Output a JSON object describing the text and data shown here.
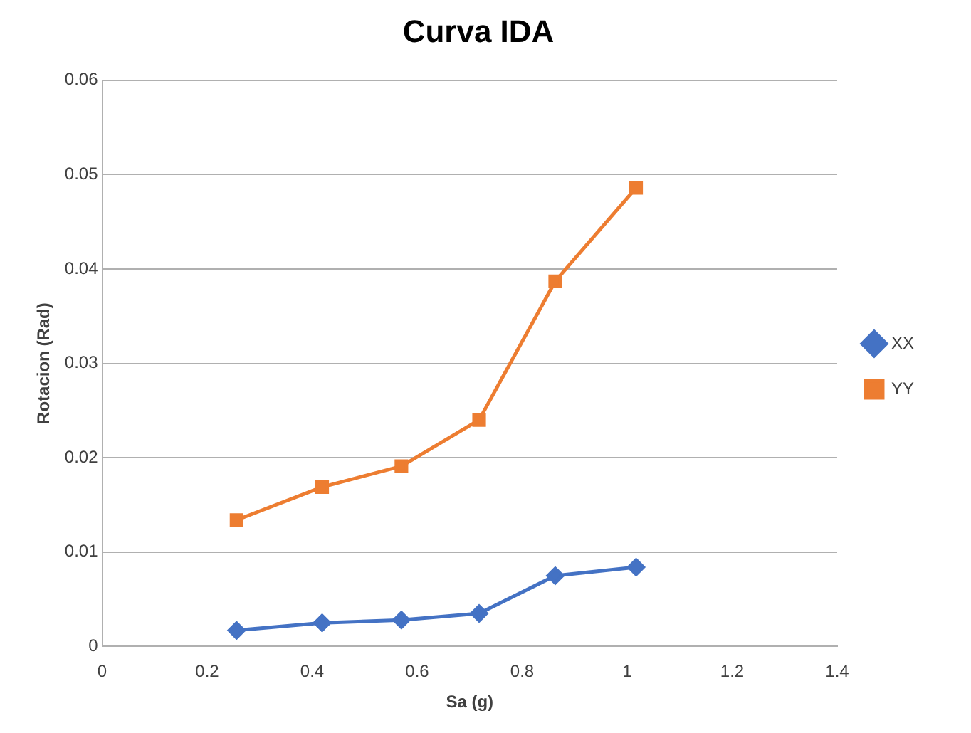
{
  "chart_data": {
    "type": "line",
    "title": "Curva IDA",
    "xlabel": "Sa (g)",
    "ylabel": "Rotacion (Rad)",
    "xlim": [
      0,
      1.4
    ],
    "xticks": [
      0,
      0.2,
      0.4,
      0.6,
      0.8,
      1,
      1.2,
      1.4
    ],
    "ylim": [
      0,
      0.06
    ],
    "yticks": [
      0,
      0.01,
      0.02,
      0.03,
      0.04,
      0.05,
      0.06
    ],
    "grid": "y",
    "legend": "right",
    "line_style": "solid",
    "series": [
      {
        "name": "XX",
        "color": "#4472c4",
        "marker": "diamond",
        "x": [
          0.256,
          0.419,
          0.57,
          0.718,
          0.863,
          1.017
        ],
        "values": [
          0.0017,
          0.0025,
          0.0028,
          0.0035,
          0.0075,
          0.0084
        ]
      },
      {
        "name": "YY",
        "color": "#ed7d31",
        "marker": "square",
        "x": [
          0.256,
          0.419,
          0.57,
          0.718,
          0.863,
          1.017
        ],
        "values": [
          0.0134,
          0.0169,
          0.0191,
          0.024,
          0.0387,
          0.0486
        ]
      }
    ]
  }
}
